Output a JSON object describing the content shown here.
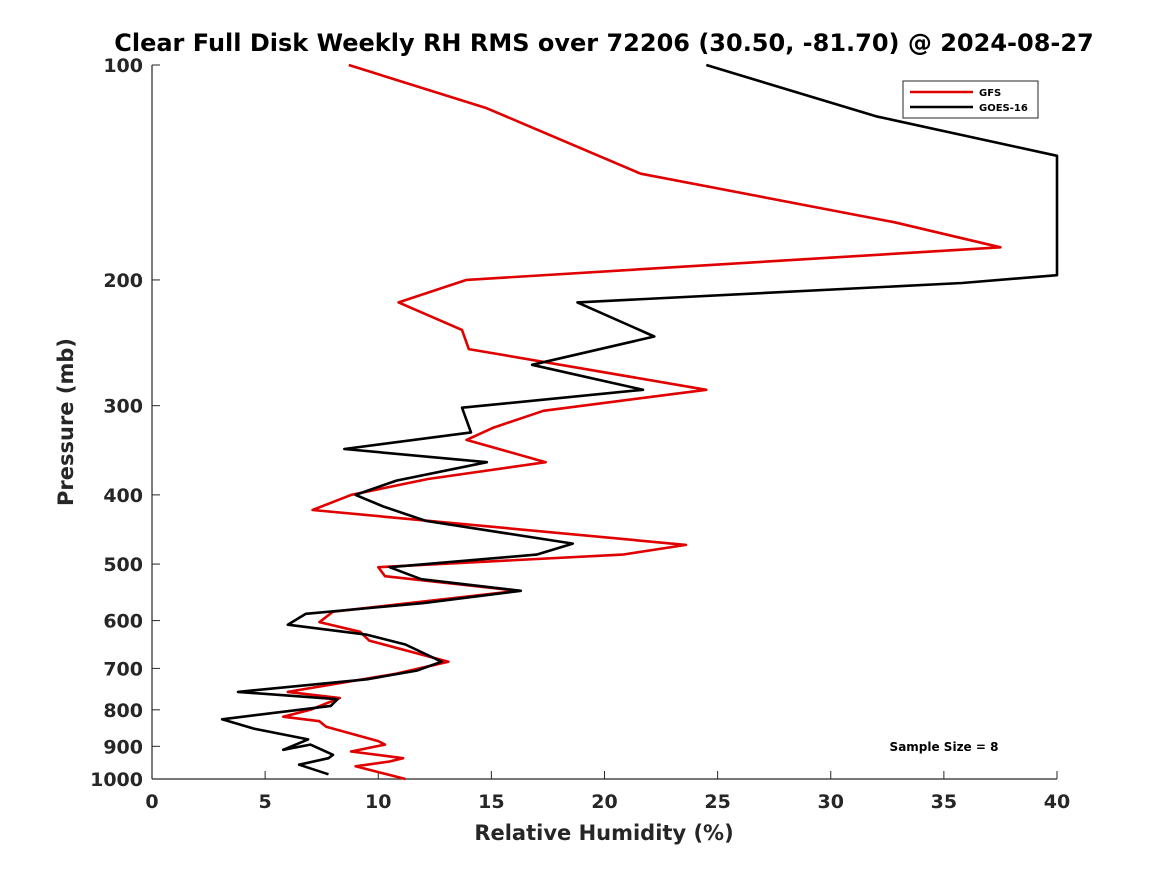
{
  "chart_data": {
    "type": "line",
    "title": "Clear Full Disk Weekly RH RMS over 72206 (30.50, -81.70) @ 2024-08-27",
    "xlabel": "Relative Humidity (%)",
    "ylabel": "Pressure (mb)",
    "xlim": [
      0,
      40
    ],
    "ylim": [
      100,
      1000
    ],
    "yscale": "log",
    "ydirection": "reverse",
    "xticks": [
      "0",
      "5",
      "10",
      "15",
      "20",
      "25",
      "30",
      "35",
      "40"
    ],
    "yticks": [
      "100",
      "200",
      "300",
      "400",
      "500",
      "600",
      "700",
      "800",
      "900",
      "1000"
    ],
    "grid": false,
    "legend_position": "top-right",
    "annotation": "Sample Size = 8",
    "series": [
      {
        "name": "GFS",
        "color": "#e00000",
        "points": [
          [
            8.7,
            100
          ],
          [
            14.8,
            115
          ],
          [
            21.6,
            142
          ],
          [
            32.8,
            166
          ],
          [
            37.5,
            180
          ],
          [
            13.9,
            200
          ],
          [
            10.9,
            215
          ],
          [
            13.7,
            235
          ],
          [
            14.0,
            250
          ],
          [
            24.5,
            285
          ],
          [
            17.3,
            305
          ],
          [
            15.1,
            322
          ],
          [
            13.9,
            335
          ],
          [
            17.4,
            360
          ],
          [
            12.2,
            380
          ],
          [
            8.8,
            400
          ],
          [
            7.1,
            420
          ],
          [
            23.6,
            470
          ],
          [
            20.8,
            485
          ],
          [
            10.0,
            505
          ],
          [
            10.3,
            520
          ],
          [
            16.2,
            545
          ],
          [
            8.0,
            583
          ],
          [
            7.4,
            603
          ],
          [
            9.2,
            622
          ],
          [
            9.6,
            640
          ],
          [
            13.1,
            685
          ],
          [
            10.8,
            712
          ],
          [
            6.0,
            755
          ],
          [
            8.3,
            770
          ],
          [
            7.0,
            800
          ],
          [
            5.8,
            818
          ],
          [
            7.4,
            830
          ],
          [
            7.7,
            845
          ],
          [
            10.0,
            885
          ],
          [
            10.3,
            895
          ],
          [
            8.8,
            915
          ],
          [
            11.1,
            935
          ],
          [
            10.5,
            945
          ],
          [
            9.0,
            960
          ],
          [
            11.2,
            1000
          ]
        ]
      },
      {
        "name": "GOES-16",
        "color": "#000000",
        "points": [
          [
            24.5,
            100
          ],
          [
            32.0,
            118
          ],
          [
            40.0,
            134
          ],
          [
            40.0,
            197
          ],
          [
            35.8,
            202
          ],
          [
            18.8,
            215
          ],
          [
            22.2,
            240
          ],
          [
            16.8,
            263
          ],
          [
            21.7,
            285
          ],
          [
            13.7,
            302
          ],
          [
            14.1,
            327
          ],
          [
            8.5,
            345
          ],
          [
            14.8,
            360
          ],
          [
            10.8,
            382
          ],
          [
            9.0,
            400
          ],
          [
            10.2,
            415
          ],
          [
            12.1,
            435
          ],
          [
            18.6,
            468
          ],
          [
            17.0,
            485
          ],
          [
            10.5,
            505
          ],
          [
            11.9,
            525
          ],
          [
            16.3,
            545
          ],
          [
            12.0,
            567
          ],
          [
            6.8,
            587
          ],
          [
            6.0,
            608
          ],
          [
            9.5,
            628
          ],
          [
            11.2,
            648
          ],
          [
            12.8,
            685
          ],
          [
            11.7,
            705
          ],
          [
            9.5,
            725
          ],
          [
            3.8,
            755
          ],
          [
            8.2,
            773
          ],
          [
            7.9,
            790
          ],
          [
            3.1,
            825
          ],
          [
            4.5,
            850
          ],
          [
            6.9,
            880
          ],
          [
            5.8,
            910
          ],
          [
            7.0,
            895
          ],
          [
            8.0,
            925
          ],
          [
            7.8,
            935
          ],
          [
            6.5,
            955
          ],
          [
            7.8,
            985
          ]
        ]
      }
    ]
  }
}
